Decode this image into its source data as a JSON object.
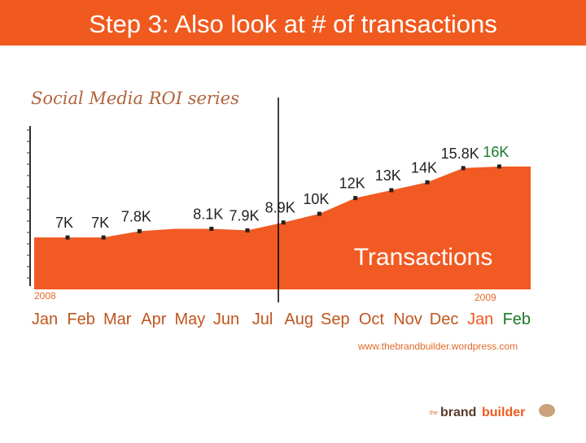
{
  "header": {
    "title": "Step 3: Also look at # of transactions"
  },
  "chart_data": {
    "type": "area",
    "title": "Social Media ROI series",
    "series_label": "Transactions",
    "years": [
      "2008",
      "2009"
    ],
    "categories": [
      "Jan",
      "Feb",
      "Mar",
      "Apr",
      "May",
      "Jun",
      "Jul",
      "Aug",
      "Sep",
      "Oct",
      "Nov",
      "Dec",
      "Jan",
      "Feb"
    ],
    "values": [
      7000,
      7000,
      7800,
      8100,
      8100,
      7900,
      8900,
      10000,
      12000,
      13000,
      14000,
      15800,
      16000,
      16000
    ],
    "value_labels": [
      "7K",
      "7K",
      "7.8K",
      null,
      "8.1K",
      "7.9K",
      "8.9K",
      "10K",
      "12K",
      "13K",
      "14K",
      "15.8K",
      "16K",
      null
    ],
    "ylim": [
      0,
      23000
    ],
    "color": "#f15a22"
  },
  "footer": {
    "url": "www.thebrandbuilder.wordpress.com",
    "logo_prefix": "the",
    "logo_brand": "brand",
    "logo_builder": "builder"
  }
}
